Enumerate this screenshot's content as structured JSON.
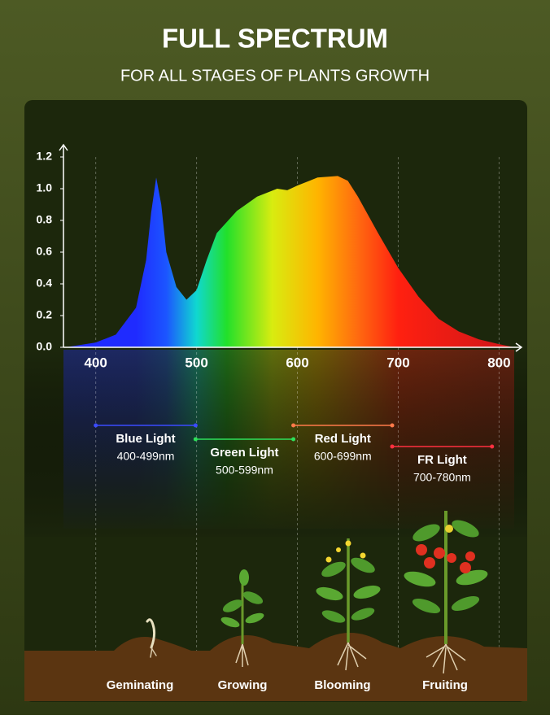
{
  "chart_data": {
    "type": "area",
    "title": "FULL SPECTRUM",
    "subtitle": "FOR ALL STAGES OF PLANTS GROWTH",
    "x": [
      370,
      400,
      420,
      440,
      450,
      455,
      460,
      465,
      470,
      480,
      490,
      500,
      510,
      520,
      540,
      560,
      580,
      590,
      600,
      620,
      640,
      650,
      660,
      680,
      700,
      720,
      740,
      760,
      780,
      800,
      815
    ],
    "y": [
      0,
      0.03,
      0.08,
      0.25,
      0.55,
      0.85,
      1.07,
      0.9,
      0.6,
      0.38,
      0.3,
      0.36,
      0.55,
      0.72,
      0.86,
      0.95,
      1.0,
      0.99,
      1.02,
      1.07,
      1.08,
      1.05,
      0.95,
      0.72,
      0.5,
      0.32,
      0.18,
      0.1,
      0.05,
      0.02,
      0
    ],
    "xlim": [
      368,
      815
    ],
    "ylim": [
      0,
      1.2
    ],
    "xticks": [
      400,
      500,
      600,
      700,
      800
    ],
    "yticks": [
      {
        "value": 0,
        "label": "0.0"
      },
      0.2,
      0.4,
      0.6,
      0.8,
      {
        "value": 1,
        "label": "1.0"
      },
      1.2
    ],
    "grid": true,
    "gradient": [
      {
        "nm": 440,
        "color": "#1f2bff"
      },
      {
        "nm": 470,
        "color": "#1c55ff"
      },
      {
        "nm": 500,
        "color": "#10d8d0"
      },
      {
        "nm": 530,
        "color": "#22e02a"
      },
      {
        "nm": 575,
        "color": "#d8ec10"
      },
      {
        "nm": 620,
        "color": "#ffb400"
      },
      {
        "nm": 660,
        "color": "#ff6a10"
      },
      {
        "nm": 700,
        "color": "#ff2010"
      },
      {
        "nm": 790,
        "color": "#d81818"
      }
    ],
    "bands": [
      {
        "name": "Blue Light",
        "range": "400-499nm",
        "start": 400,
        "end": 499,
        "color": "#3b4bff"
      },
      {
        "name": "Green Light",
        "range": "500-599nm",
        "start": 499,
        "end": 596,
        "color": "#2ee05a"
      },
      {
        "name": "Red Light",
        "range": "600-699nm",
        "start": 596,
        "end": 694,
        "color": "#ff7a4a"
      },
      {
        "name": "FR Light",
        "range": "700-780nm",
        "start": 694,
        "end": 793,
        "color": "#ff3040"
      }
    ],
    "stages": [
      "Geminating",
      "Growing",
      "Blooming",
      "Fruiting"
    ]
  }
}
